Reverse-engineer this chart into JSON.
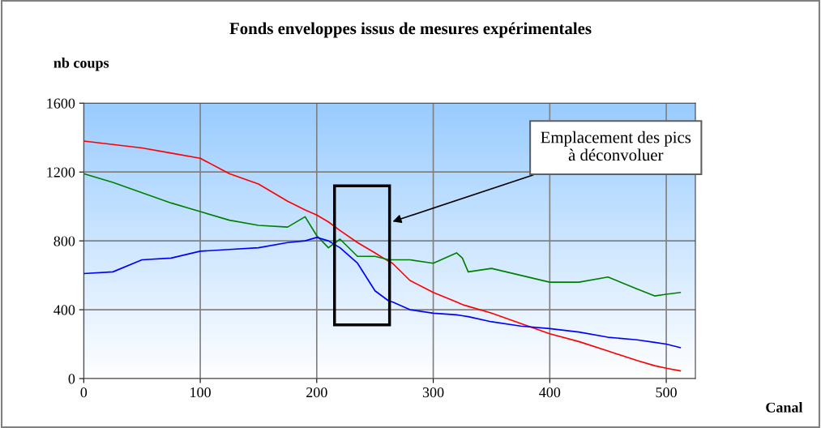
{
  "chart_data": {
    "type": "line",
    "title": "Fonds enveloppes issus de mesures expérimentales",
    "xlabel": "Canal",
    "ylabel": "nb coups",
    "x": [
      0,
      25,
      50,
      75,
      100,
      125,
      150,
      175,
      190,
      200,
      210,
      220,
      235,
      250,
      262,
      265,
      280,
      300,
      320,
      325,
      330,
      350,
      375,
      400,
      425,
      450,
      475,
      490,
      500,
      512
    ],
    "series": [
      {
        "color": "#ff0000",
        "values": [
          1380,
          1360,
          1340,
          1310,
          1280,
          1190,
          1130,
          1030,
          980,
          950,
          910,
          860,
          790,
          730,
          680,
          670,
          570,
          500,
          445,
          430,
          420,
          380,
          320,
          260,
          215,
          160,
          105,
          75,
          60,
          45
        ]
      },
      {
        "color": "#008000",
        "values": [
          1190,
          1140,
          1080,
          1020,
          970,
          920,
          890,
          880,
          940,
          830,
          760,
          810,
          710,
          710,
          690,
          690,
          690,
          670,
          730,
          700,
          620,
          640,
          600,
          560,
          560,
          590,
          520,
          480,
          490,
          500
        ]
      },
      {
        "color": "#0000ff",
        "values": [
          610,
          620,
          690,
          700,
          740,
          750,
          760,
          790,
          800,
          820,
          800,
          760,
          670,
          510,
          450,
          445,
          400,
          380,
          370,
          365,
          360,
          330,
          305,
          290,
          270,
          240,
          225,
          210,
          200,
          180
        ]
      }
    ],
    "xlim": [
      0,
      525
    ],
    "xticks": [
      0,
      100,
      200,
      300,
      400,
      500
    ],
    "ylim": [
      0,
      1600
    ],
    "yticks": [
      0,
      400,
      800,
      1200,
      1600
    ],
    "grid": true,
    "legend": false,
    "marker": "none",
    "line_style": "solid",
    "annotations": [
      "Emplacement des pics\nà déconvoluer"
    ]
  }
}
